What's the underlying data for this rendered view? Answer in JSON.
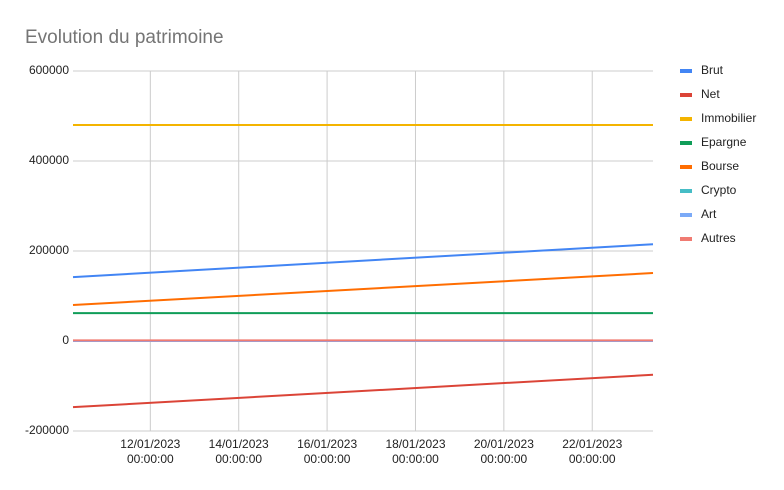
{
  "chart_data": {
    "type": "line",
    "title": "Evolution du patrimoine",
    "x": [
      "10/01/2023 06:00:00",
      "23/01/2023 09:00:00"
    ],
    "series": [
      {
        "name": "Brut",
        "color": "#4285f4",
        "values": [
          142000,
          215000
        ]
      },
      {
        "name": "Net",
        "color": "#db4437",
        "values": [
          -147000,
          -75000
        ]
      },
      {
        "name": "Immobilier",
        "color": "#f4b400",
        "values": [
          480000,
          480000
        ]
      },
      {
        "name": "Epargne",
        "color": "#0f9d58",
        "values": [
          62000,
          62000
        ]
      },
      {
        "name": "Bourse",
        "color": "#ff6d01",
        "values": [
          80000,
          151000
        ]
      },
      {
        "name": "Crypto",
        "color": "#46bdc6",
        "values": [
          0,
          0
        ]
      },
      {
        "name": "Art",
        "color": "#7baaf7",
        "values": [
          0,
          0
        ]
      },
      {
        "name": "Autres",
        "color": "#f07b72",
        "values": [
          1500,
          1500
        ]
      }
    ],
    "xlim": [
      "10/01/2023 06:00:00",
      "23/01/2023 09:00:00"
    ],
    "xticks": [
      "12/01/2023 00:00:00",
      "14/01/2023 00:00:00",
      "16/01/2023 00:00:00",
      "18/01/2023 00:00:00",
      "20/01/2023 00:00:00",
      "22/01/2023 00:00:00"
    ],
    "ylim": [
      -200000,
      600000
    ],
    "yticks": [
      -200000,
      0,
      200000,
      400000,
      600000
    ],
    "grid": true,
    "legend": "right"
  }
}
